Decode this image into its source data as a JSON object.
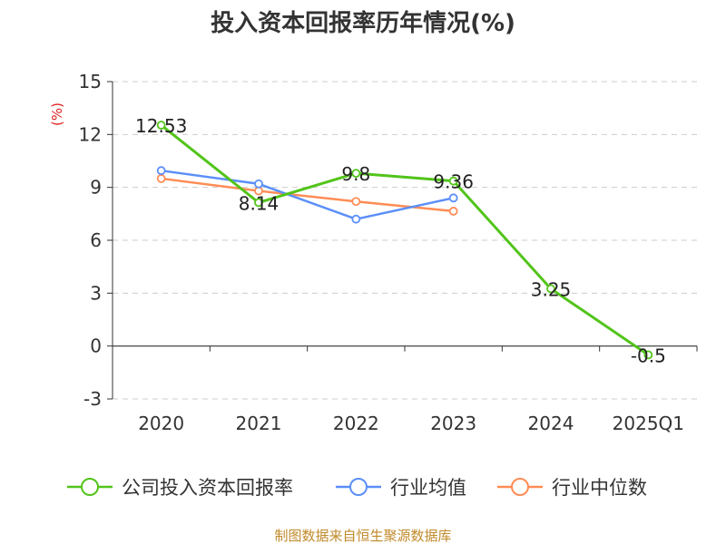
{
  "chart_data": {
    "type": "line",
    "title": "投入资本回报率历年情况(%)",
    "ylabel": "(%)",
    "categories": [
      "2020",
      "2021",
      "2022",
      "2023",
      "2024",
      "2025Q1"
    ],
    "ylim": [
      -3,
      15
    ],
    "yticks": [
      "15",
      "12",
      "9",
      "6",
      "3",
      "0",
      "-3"
    ],
    "grid": true,
    "legend_position": "bottom",
    "series": [
      {
        "name": "公司投入资本回报率",
        "color": "#52c41a",
        "values": [
          12.53,
          8.14,
          9.8,
          9.36,
          3.25,
          -0.5
        ],
        "labels": [
          "12.53",
          "8.14",
          "9.8",
          "9.36",
          "3.25",
          "-0.5"
        ]
      },
      {
        "name": "行业均值",
        "color": "#5b8ff9",
        "values": [
          9.95,
          9.2,
          7.2,
          8.4,
          null,
          null
        ]
      },
      {
        "name": "行业中位数",
        "color": "#ff8c55",
        "values": [
          9.5,
          8.8,
          8.2,
          7.65,
          null,
          null
        ]
      }
    ]
  },
  "footer": {
    "source": "制图数据来自恒生聚源数据库"
  }
}
